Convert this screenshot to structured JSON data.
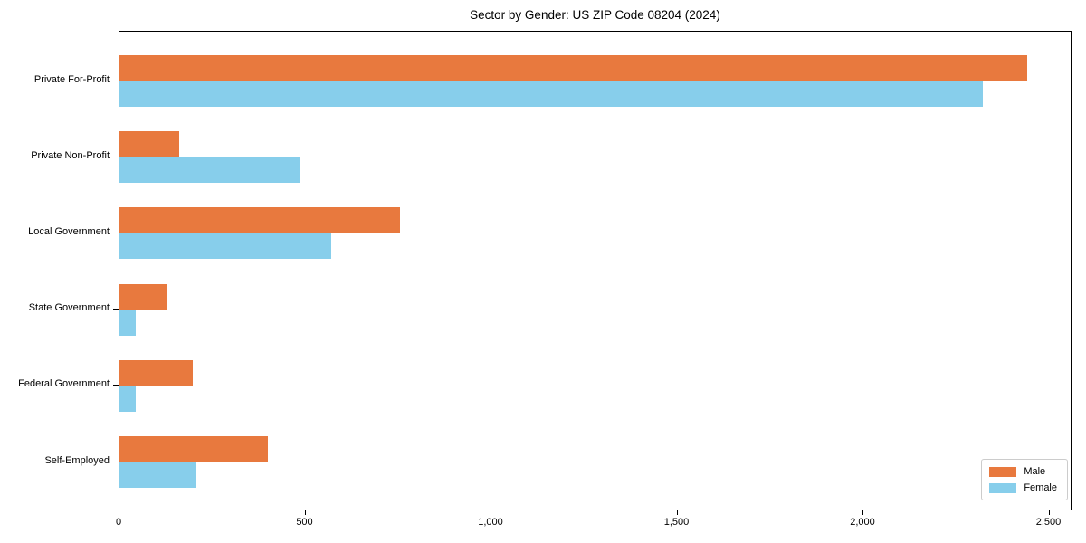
{
  "title": "Sector by Gender: US ZIP Code 08204 (2024)",
  "colors": {
    "male": "#e8793e",
    "female": "#87ceeb",
    "spine": "#000000",
    "legend_border": "#cccccc"
  },
  "chart_data": {
    "type": "bar",
    "orientation": "horizontal",
    "title": "Sector by Gender: US ZIP Code 08204 (2024)",
    "categories": [
      "Private For-Profit",
      "Private Non-Profit",
      "Local Government",
      "State Government",
      "Federal Government",
      "Self-Employed"
    ],
    "series": [
      {
        "name": "Male",
        "color": "#e8793e",
        "values": [
          2440,
          160,
          755,
          127,
          197,
          400
        ]
      },
      {
        "name": "Female",
        "color": "#87ceeb",
        "values": [
          2320,
          485,
          570,
          45,
          45,
          207
        ]
      }
    ],
    "xlabel": "",
    "ylabel": "",
    "xlim": [
      0,
      2562
    ],
    "xticks": [
      0,
      500,
      1000,
      1500,
      2000,
      2500
    ],
    "xtick_labels": [
      "0",
      "500",
      "1,000",
      "1,500",
      "2,000",
      "2,500"
    ],
    "grid": false,
    "legend": {
      "position": "lower right",
      "entries": [
        "Male",
        "Female"
      ]
    }
  }
}
